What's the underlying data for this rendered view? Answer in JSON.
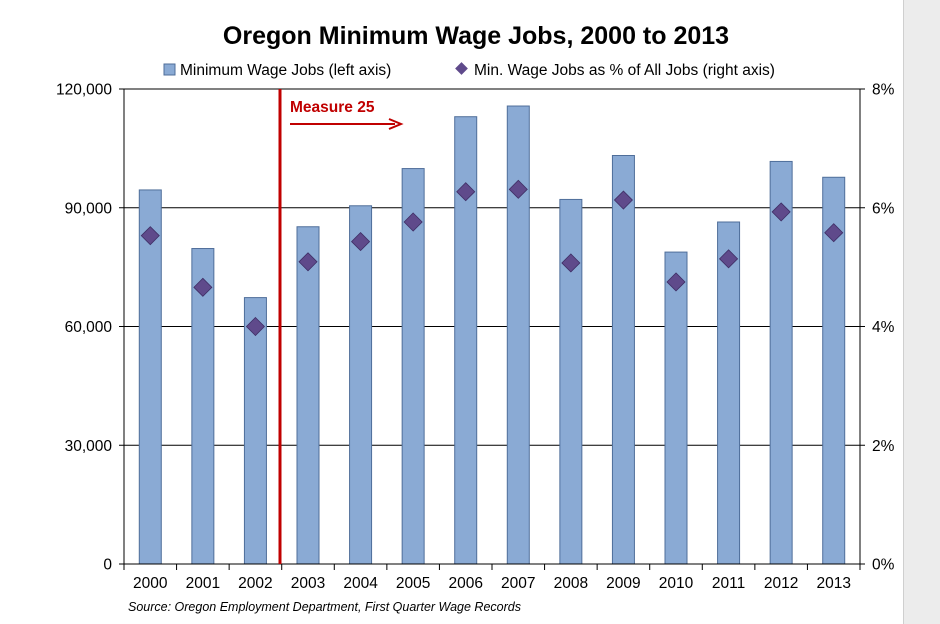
{
  "chart_data": {
    "type": "bar",
    "title": "Oregon Minimum Wage Jobs, 2000 to 2013",
    "categories": [
      "2000",
      "2001",
      "2002",
      "2003",
      "2004",
      "2005",
      "2006",
      "2007",
      "2008",
      "2009",
      "2010",
      "2011",
      "2012",
      "2013"
    ],
    "series": [
      {
        "name": "Minimum Wage Jobs (left axis)",
        "type": "bar",
        "axis": "left",
        "color": "#8aaad4",
        "values": [
          94500,
          79700,
          67300,
          85200,
          90500,
          99900,
          113000,
          115700,
          92100,
          103200,
          78800,
          86400,
          101700,
          97700
        ]
      },
      {
        "name": "Min. Wage Jobs as % of All Jobs (right axis)",
        "type": "scatter",
        "marker": "diamond",
        "axis": "right",
        "color": "#5f4a8b",
        "values": [
          5.53,
          4.66,
          4.0,
          5.09,
          5.43,
          5.76,
          6.27,
          6.31,
          5.07,
          6.13,
          4.75,
          5.14,
          5.93,
          5.58
        ]
      }
    ],
    "left_axis": {
      "min": 0,
      "max": 120000,
      "ticks": [
        "0",
        "30,000",
        "60,000",
        "90,000",
        "120,000"
      ]
    },
    "right_axis": {
      "min": 0,
      "max": 8,
      "ticks": [
        "0%",
        "2%",
        "4%",
        "6%",
        "8%"
      ]
    },
    "grid": true,
    "legend": "top",
    "annotation": {
      "label": "Measure 25",
      "between": [
        "2002",
        "2003"
      ],
      "color": "#c00000"
    },
    "source": "Source: Oregon Employment Department, First Quarter Wage Records"
  }
}
